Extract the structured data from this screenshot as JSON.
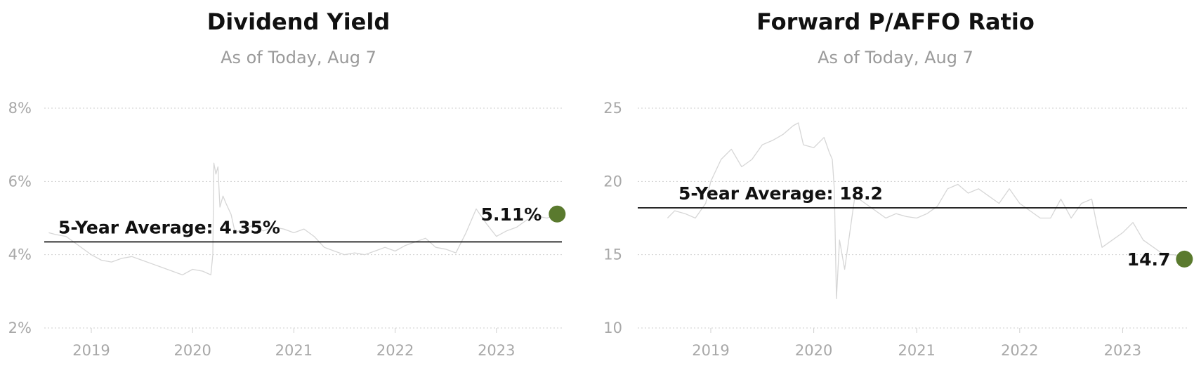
{
  "chart_data": [
    {
      "type": "line",
      "title": "Dividend Yield",
      "subtitle": "As of Today, Aug 7",
      "xlabel": "",
      "ylabel": "",
      "x_range": [
        2018.58,
        2023.6
      ],
      "ylim": [
        2,
        8
      ],
      "y_ticks": [
        {
          "value": 2,
          "label": "2%"
        },
        {
          "value": 4,
          "label": "4%"
        },
        {
          "value": 6,
          "label": "6%"
        },
        {
          "value": 8,
          "label": "8%"
        }
      ],
      "x_ticks": [
        {
          "value": 2019,
          "label": "2019"
        },
        {
          "value": 2020,
          "label": "2020"
        },
        {
          "value": 2021,
          "label": "2021"
        },
        {
          "value": 2022,
          "label": "2022"
        },
        {
          "value": 2023,
          "label": "2023"
        }
      ],
      "grid": true,
      "average": {
        "value": 4.35,
        "label": "5-Year Average: 4.35%"
      },
      "current": {
        "x": 2023.6,
        "value": 5.11,
        "label": "5.11%",
        "color": "#5a7a2e"
      },
      "series_color": "#d6d6d6",
      "series": [
        {
          "x": [
            2018.58,
            2018.65,
            2018.75,
            2018.85,
            2018.95,
            2019.0,
            2019.1,
            2019.2,
            2019.3,
            2019.4,
            2019.5,
            2019.6,
            2019.7,
            2019.8,
            2019.9,
            2020.0,
            2020.1,
            2020.18,
            2020.2,
            2020.21,
            2020.23,
            2020.25,
            2020.27,
            2020.3,
            2020.33,
            2020.38,
            2020.42,
            2020.5,
            2020.6,
            2020.7,
            2020.8,
            2020.9,
            2021.0,
            2021.1,
            2021.2,
            2021.3,
            2021.4,
            2021.5,
            2021.6,
            2021.7,
            2021.8,
            2021.9,
            2022.0,
            2022.1,
            2022.2,
            2022.3,
            2022.4,
            2022.5,
            2022.6,
            2022.7,
            2022.8,
            2022.9,
            2023.0,
            2023.1,
            2023.2,
            2023.3,
            2023.4,
            2023.5,
            2023.6
          ],
          "values": [
            4.6,
            4.55,
            4.5,
            4.3,
            4.1,
            4.0,
            3.85,
            3.8,
            3.9,
            3.95,
            3.85,
            3.75,
            3.65,
            3.55,
            3.45,
            3.6,
            3.55,
            3.45,
            4.0,
            6.5,
            6.2,
            6.4,
            5.3,
            5.6,
            5.4,
            5.1,
            4.6,
            4.7,
            4.8,
            4.65,
            4.75,
            4.7,
            4.6,
            4.7,
            4.5,
            4.2,
            4.1,
            4.0,
            4.05,
            4.0,
            4.1,
            4.2,
            4.1,
            4.25,
            4.35,
            4.45,
            4.2,
            4.15,
            4.05,
            4.6,
            5.25,
            4.85,
            4.5,
            4.65,
            4.75,
            4.95,
            5.05,
            5.0,
            5.11
          ]
        }
      ]
    },
    {
      "type": "line",
      "title": "Forward P/AFFO Ratio",
      "subtitle": "As of Today, Aug 7",
      "xlabel": "",
      "ylabel": "",
      "x_range": [
        2018.58,
        2023.6
      ],
      "ylim": [
        10,
        25
      ],
      "y_ticks": [
        {
          "value": 10,
          "label": "10"
        },
        {
          "value": 15,
          "label": "15"
        },
        {
          "value": 20,
          "label": "20"
        },
        {
          "value": 25,
          "label": "25"
        }
      ],
      "x_ticks": [
        {
          "value": 2019,
          "label": "2019"
        },
        {
          "value": 2020,
          "label": "2020"
        },
        {
          "value": 2021,
          "label": "2021"
        },
        {
          "value": 2022,
          "label": "2022"
        },
        {
          "value": 2023,
          "label": "2023"
        }
      ],
      "grid": true,
      "average": {
        "value": 18.2,
        "label": "5-Year Average: 18.2"
      },
      "current": {
        "x": 2023.6,
        "value": 14.7,
        "label": "14.7",
        "color": "#5a7a2e"
      },
      "series_color": "#d6d6d6",
      "series": [
        {
          "x": [
            2018.58,
            2018.65,
            2018.75,
            2018.85,
            2018.95,
            2019.0,
            2019.1,
            2019.2,
            2019.3,
            2019.4,
            2019.5,
            2019.6,
            2019.7,
            2019.8,
            2019.85,
            2019.9,
            2020.0,
            2020.1,
            2020.15,
            2020.18,
            2020.2,
            2020.22,
            2020.25,
            2020.3,
            2020.35,
            2020.4,
            2020.5,
            2020.6,
            2020.7,
            2020.8,
            2020.9,
            2021.0,
            2021.1,
            2021.2,
            2021.3,
            2021.4,
            2021.5,
            2021.6,
            2021.7,
            2021.8,
            2021.9,
            2022.0,
            2022.1,
            2022.2,
            2022.3,
            2022.4,
            2022.5,
            2022.6,
            2022.7,
            2022.75,
            2022.8,
            2022.9,
            2023.0,
            2023.1,
            2023.2,
            2023.3,
            2023.4,
            2023.5,
            2023.6
          ],
          "values": [
            17.5,
            18.0,
            17.8,
            17.5,
            18.5,
            20.0,
            21.5,
            22.2,
            21.0,
            21.5,
            22.5,
            22.8,
            23.2,
            23.8,
            24.0,
            22.5,
            22.3,
            23.0,
            22.0,
            21.5,
            19.5,
            12.0,
            16.0,
            14.0,
            16.5,
            19.0,
            18.5,
            18.0,
            17.5,
            17.8,
            17.6,
            17.5,
            17.8,
            18.3,
            19.5,
            19.8,
            19.2,
            19.5,
            19.0,
            18.5,
            19.5,
            18.5,
            18.0,
            17.5,
            17.5,
            18.8,
            17.5,
            18.5,
            18.8,
            17.0,
            15.5,
            16.0,
            16.5,
            17.2,
            16.0,
            15.5,
            15.0,
            15.0,
            14.7
          ]
        }
      ]
    }
  ]
}
